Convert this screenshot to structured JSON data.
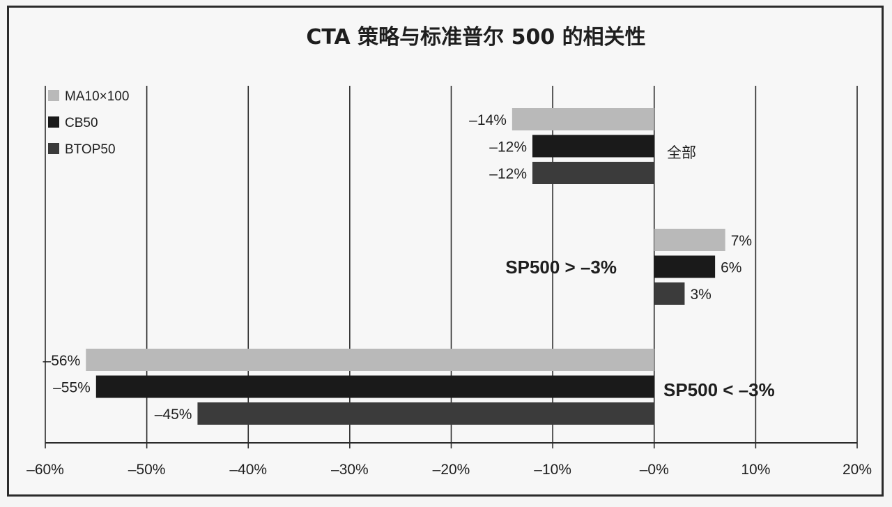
{
  "chart_data": {
    "type": "bar",
    "orientation": "horizontal",
    "title": "CTA 策略与标准普尔 500 的相关性",
    "xlim": [
      -60,
      20
    ],
    "x_ticks": [
      "–60%",
      "–50%",
      "–40%",
      "–30%",
      "–20%",
      "–10%",
      "–0%",
      "10%",
      "20%"
    ],
    "grid": "vertical",
    "legend_position": "top-left",
    "categories": [
      "全部",
      "SP500 > –3%",
      "SP500 < –3%"
    ],
    "series": [
      {
        "name": "MA10×100",
        "color": "#b9b9b9",
        "values": [
          -14,
          7,
          -56
        ],
        "labels": [
          "–14%",
          "7%",
          "–56%"
        ]
      },
      {
        "name": "CB50",
        "color": "#1a1a1a",
        "values": [
          -12,
          6,
          -55
        ],
        "labels": [
          "–12%",
          "6%",
          "–55%"
        ]
      },
      {
        "name": "BTOP50",
        "color": "#3b3b3b",
        "values": [
          -12,
          3,
          -45
        ],
        "labels": [
          "–12%",
          "3%",
          "–45%"
        ]
      }
    ]
  }
}
